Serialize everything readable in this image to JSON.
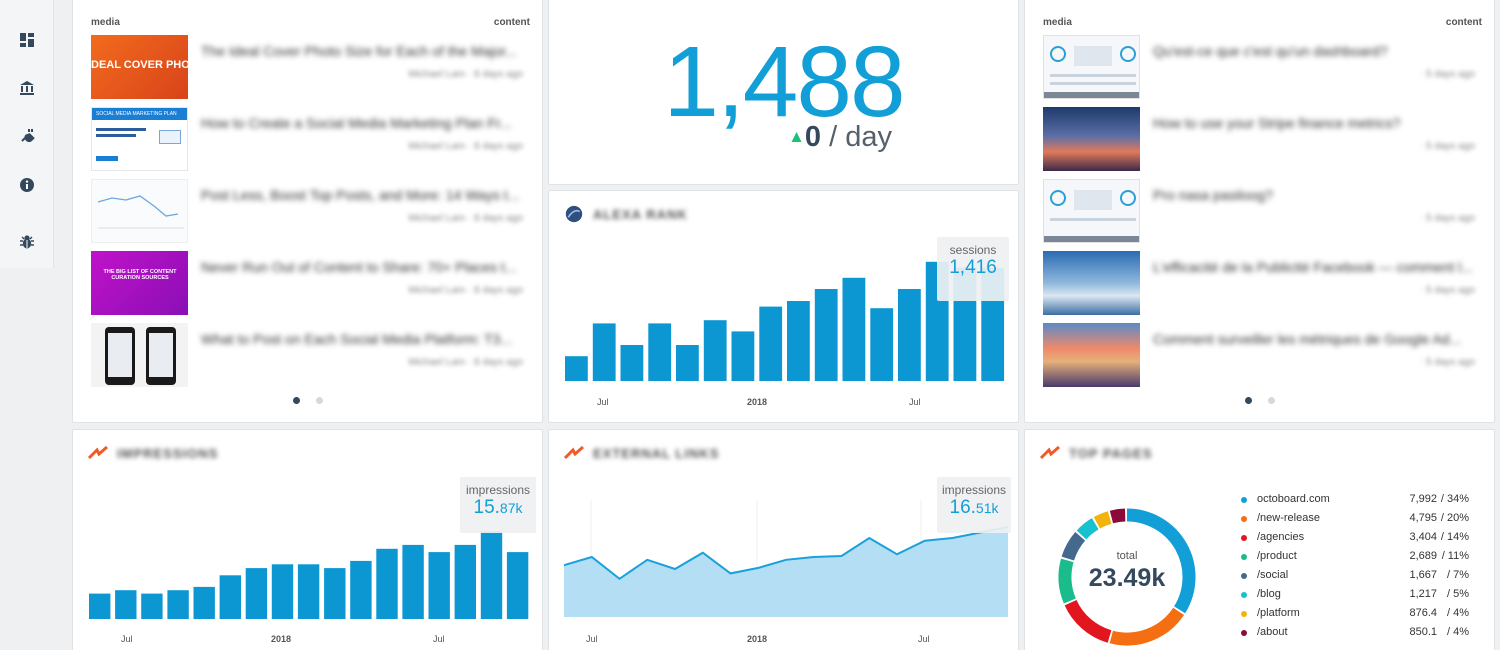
{
  "sidebar": {
    "items": [
      {
        "icon": "dashboard-icon"
      },
      {
        "icon": "bank-icon"
      },
      {
        "icon": "plug-icon"
      },
      {
        "icon": "info-icon"
      },
      {
        "icon": "bug-icon"
      }
    ]
  },
  "media_left": {
    "col_media": "media",
    "col_content": "content",
    "items": [
      {
        "title": "The Ideal Cover Photo Size for Each of the Major...",
        "sub": "Michael Lam · 8 days ago",
        "thumb_text": "DEAL COVER PHOTO SIZ"
      },
      {
        "title": "How to Create a Social Media Marketing Plan Fr...",
        "sub": "Michael Lam · 8 days ago",
        "thumb_text": "SOCIAL MEDIA MARKETING PLAN"
      },
      {
        "title": "Post Less, Boost Top Posts, and More: 14 Ways t...",
        "sub": "Michael Lam · 8 days ago",
        "thumb_text": ""
      },
      {
        "title": "Never Run Out of Content to Share: 70+ Places t...",
        "sub": "Michael Lam · 8 days ago",
        "thumb_text": "THE BIG LIST OF CONTENT CURATION SOURCES"
      },
      {
        "title": "What to Post on Each Social Media Platform: T3...",
        "sub": "Michael Lam · 8 days ago",
        "thumb_text": ""
      }
    ]
  },
  "big_number": {
    "value": "1,488",
    "change_arrow": "▲",
    "change": "0",
    "unit": "/ day"
  },
  "sessions_widget": {
    "title": "ALEXA RANK",
    "tooltip_label": "sessions",
    "tooltip_value": "1,416",
    "x_labels": [
      "Jul",
      "2018",
      "Jul"
    ]
  },
  "media_right": {
    "col_media": "media",
    "col_content": "content",
    "items": [
      {
        "title": "Qu'est-ce que c'est qu'un dashboard?",
        "sub": "· 5 days ago"
      },
      {
        "title": "How to use your Stripe finance metrics?",
        "sub": "· 5 days ago"
      },
      {
        "title": "Pro nasa pasiloog?",
        "sub": "· 5 days ago"
      },
      {
        "title": "L'efficacité de la Publicité Facebook — comment l...",
        "sub": "· 5 days ago"
      },
      {
        "title": "Comment surveiller les métriques de Google Ad...",
        "sub": "· 5 days ago"
      }
    ]
  },
  "impressions_widget": {
    "title": "IMPRESSIONS",
    "tooltip_label": "impressions",
    "tooltip_value_main": "15.",
    "tooltip_value_suffix": "87k",
    "x_labels": [
      "Jul",
      "2018",
      "Jul"
    ]
  },
  "external_links_widget": {
    "title": "EXTERNAL LINKS",
    "tooltip_label": "impressions",
    "tooltip_value_main": "16.",
    "tooltip_value_suffix": "51k",
    "x_labels": [
      "Jul",
      "2018",
      "Jul"
    ]
  },
  "top_pages_widget": {
    "title": "TOP PAGES",
    "total_label": "total",
    "total_value": "23.49k",
    "legend": [
      {
        "name": "octoboard.com",
        "value": "7,992",
        "pct": "/  34%",
        "color": "#129fd8",
        "share": 34
      },
      {
        "name": "/new-release",
        "value": "4,795",
        "pct": "/  20%",
        "color": "#f56e12",
        "share": 20
      },
      {
        "name": "/agencies",
        "value": "3,404",
        "pct": "/  14%",
        "color": "#e2161e",
        "share": 14
      },
      {
        "name": "/product",
        "value": "2,689",
        "pct": "/  11%",
        "color": "#1bbc8b",
        "share": 11
      },
      {
        "name": "/social",
        "value": "1,667",
        "pct": "/   7%",
        "color": "#44698c",
        "share": 7
      },
      {
        "name": "/blog",
        "value": "1,217",
        "pct": "/   5%",
        "color": "#17c1cf",
        "share": 5
      },
      {
        "name": "/platform",
        "value": "876.4",
        "pct": "/   4%",
        "color": "#f2b40c",
        "share": 4
      },
      {
        "name": "/about",
        "value": "850.1",
        "pct": "/   4%",
        "color": "#8c0a3a",
        "share": 4
      }
    ]
  },
  "chart_data": [
    {
      "type": "bar",
      "name": "sessions",
      "values": [
        310,
        720,
        450,
        720,
        450,
        760,
        620,
        930,
        1000,
        1150,
        1290,
        910,
        1150,
        1490,
        1416,
        1416
      ],
      "highlight_last": true,
      "ylim": [
        0,
        1500
      ],
      "xlabel": "",
      "ylabel": ""
    },
    {
      "type": "bar",
      "name": "impressions",
      "values": [
        4.6,
        5.2,
        4.6,
        5.2,
        5.8,
        7.9,
        9.2,
        9.9,
        9.9,
        9.2,
        10.5,
        12.7,
        13.4,
        12.1,
        13.4,
        15.87,
        12.1
      ],
      "highlight_index": 15,
      "ylim": [
        0,
        17
      ]
    },
    {
      "type": "area",
      "name": "external links",
      "values": [
        9.5,
        11.0,
        7.0,
        10.5,
        8.8,
        11.8,
        8.0,
        9.0,
        10.5,
        11.0,
        11.2,
        14.5,
        11.5,
        14.0,
        14.5,
        15.5,
        16.51
      ],
      "ylim": [
        0,
        20
      ]
    },
    {
      "type": "pie",
      "name": "top pages",
      "values": [
        34,
        20,
        14,
        11,
        7,
        5,
        4,
        4
      ]
    }
  ]
}
